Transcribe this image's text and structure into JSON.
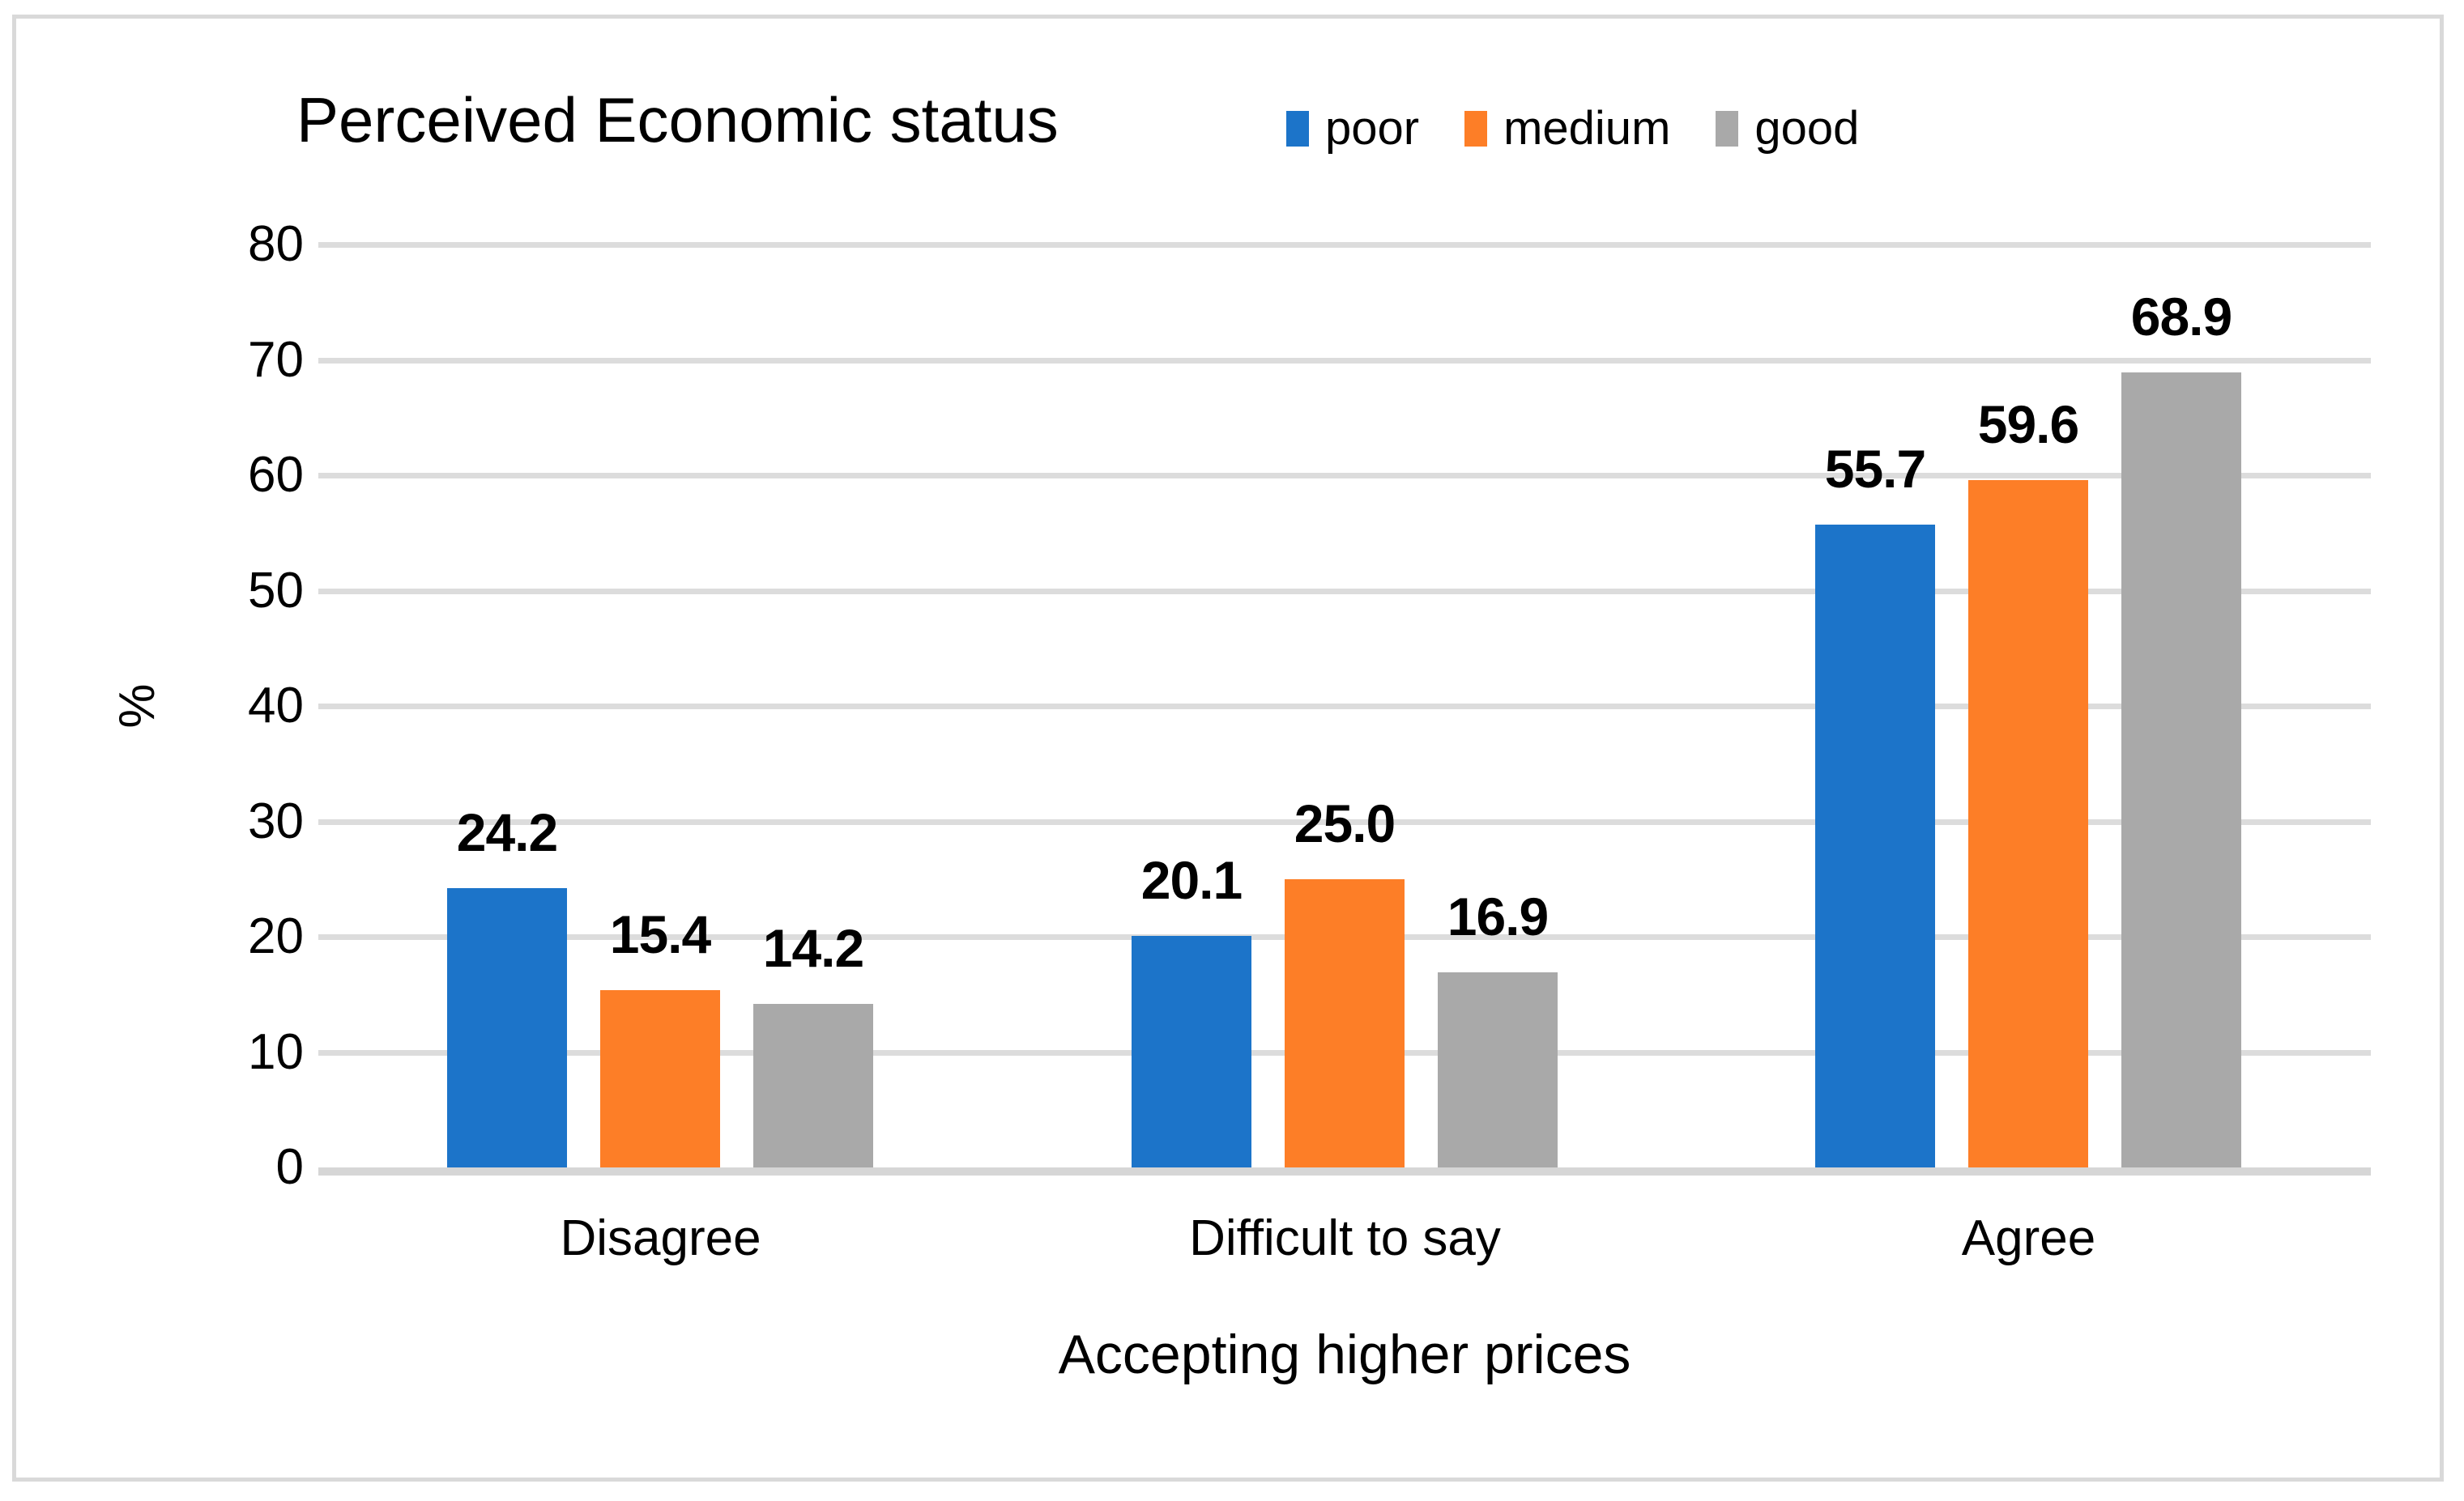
{
  "chart": {
    "title": "Perceived Economic status"
  },
  "chart_data": {
    "type": "bar",
    "title": "Perceived Economic status",
    "categories": [
      "Disagree",
      "Difficult to say",
      "Agree"
    ],
    "series": [
      {
        "name": "poor",
        "color": "#1C74C9",
        "values": [
          24.2,
          20.1,
          55.7
        ],
        "value_labels": [
          "24.2",
          "20.1",
          "55.7"
        ]
      },
      {
        "name": "medium",
        "color": "#FD7E27",
        "values": [
          15.4,
          25.0,
          59.6
        ],
        "value_labels": [
          "15.4",
          "25.0",
          "59.6"
        ]
      },
      {
        "name": "good",
        "color": "#A9A9A9",
        "values": [
          14.2,
          16.9,
          68.9
        ],
        "value_labels": [
          "14.2",
          "16.9",
          "68.9"
        ]
      }
    ],
    "xlabel": "Accepting higher prices",
    "ylabel": "%",
    "ylim": [
      0,
      80
    ],
    "ytick_interval": 10,
    "ytick_labels": [
      "0",
      "10",
      "20",
      "30",
      "40",
      "50",
      "60",
      "70",
      "80"
    ],
    "legend_position": "top-right",
    "grid": "horizontal",
    "colors": {
      "gridline": "#DCDCDC",
      "axis_line": "#D6D6D6",
      "frame_border": "#D9D9D9",
      "text": "#000000"
    }
  }
}
